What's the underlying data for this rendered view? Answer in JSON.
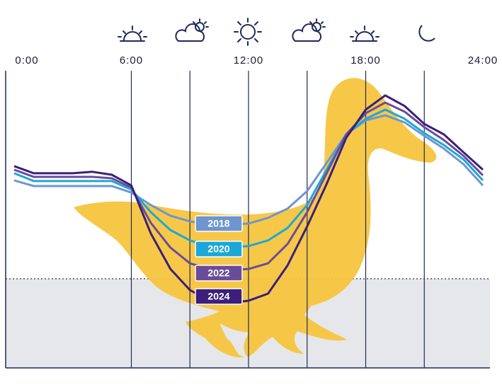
{
  "chart_data": {
    "type": "line",
    "x": [
      0,
      1,
      2,
      3,
      4,
      5,
      6,
      7,
      8,
      9,
      10,
      11,
      12,
      13,
      14,
      15,
      16,
      17,
      18,
      19,
      20,
      21,
      22,
      23,
      24
    ],
    "xlim": [
      0,
      24
    ],
    "xticks": [
      {
        "value": 0,
        "label": "0:00"
      },
      {
        "value": 6,
        "label": "6:00"
      },
      {
        "value": 12,
        "label": "12:00"
      },
      {
        "value": 18,
        "label": "18:00"
      },
      {
        "value": 24,
        "label": "24:00"
      }
    ],
    "xgrid": [
      6,
      9,
      12,
      15,
      18,
      21
    ],
    "ylim": [
      0,
      100
    ],
    "threshold": 30,
    "series": [
      {
        "name": "2018",
        "color": "#6f95cf",
        "values": [
          63.1,
          61.2,
          61.2,
          61.2,
          61.2,
          61.2,
          59,
          54.8,
          51.2,
          49.3,
          48.3,
          48.1,
          48.6,
          50.5,
          53.6,
          59.5,
          69,
          78.6,
          83.3,
          85,
          82.6,
          78.1,
          73.8,
          68.6,
          61.4
        ]
      },
      {
        "name": "2020",
        "color": "#1ba8d8",
        "values": [
          65.5,
          62.9,
          62.9,
          62.9,
          62.9,
          62.9,
          60,
          52.4,
          46.4,
          42.9,
          41,
          40.5,
          41,
          42.9,
          47.1,
          54.8,
          66.7,
          78.6,
          83.8,
          86.9,
          83.8,
          79,
          75,
          70.2,
          63.1
        ]
      },
      {
        "name": "2022",
        "color": "#6b4c9a",
        "values": [
          66.7,
          64.3,
          64.3,
          64.3,
          64.3,
          63.8,
          60.7,
          48.8,
          40.5,
          35.2,
          33.3,
          32.9,
          33.3,
          35.2,
          41.7,
          52.4,
          65.5,
          78.6,
          85.7,
          89.3,
          86.2,
          81,
          76.7,
          71.4,
          64.8
        ]
      },
      {
        "name": "2024",
        "color": "#3b1f7a",
        "values": [
          67.9,
          65.5,
          65.5,
          65.5,
          66,
          65,
          61.4,
          45.2,
          33.3,
          26.2,
          22.6,
          21.9,
          22.6,
          25,
          34.5,
          47.6,
          61.9,
          77.4,
          86.9,
          91.7,
          88.1,
          82.1,
          78.6,
          72.6,
          66.7
        ]
      }
    ]
  }
}
